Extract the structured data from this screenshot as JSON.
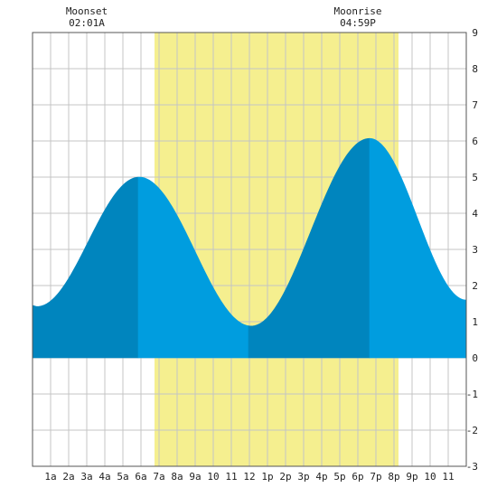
{
  "chart_data": {
    "type": "area",
    "title": "",
    "xlabel": "",
    "ylabel": "",
    "xlim": [
      0,
      24
    ],
    "ylim": [
      -3,
      9
    ],
    "y_ticks": [
      9,
      8,
      7,
      6,
      5,
      4,
      3,
      2,
      1,
      0,
      -1,
      -2,
      -3
    ],
    "x_ticks": [
      {
        "x": 1,
        "label": "1a"
      },
      {
        "x": 2,
        "label": "2a"
      },
      {
        "x": 3,
        "label": "3a"
      },
      {
        "x": 4,
        "label": "4a"
      },
      {
        "x": 5,
        "label": "5a"
      },
      {
        "x": 6,
        "label": "6a"
      },
      {
        "x": 7,
        "label": "7a"
      },
      {
        "x": 8,
        "label": "8a"
      },
      {
        "x": 9,
        "label": "9a"
      },
      {
        "x": 10,
        "label": "10"
      },
      {
        "x": 11,
        "label": "11"
      },
      {
        "x": 12,
        "label": "12"
      },
      {
        "x": 13,
        "label": "1p"
      },
      {
        "x": 14,
        "label": "2p"
      },
      {
        "x": 15,
        "label": "3p"
      },
      {
        "x": 16,
        "label": "4p"
      },
      {
        "x": 17,
        "label": "5p"
      },
      {
        "x": 18,
        "label": "6p"
      },
      {
        "x": 19,
        "label": "7p"
      },
      {
        "x": 20,
        "label": "8p"
      },
      {
        "x": 21,
        "label": "9p"
      },
      {
        "x": 22,
        "label": "10"
      },
      {
        "x": 23,
        "label": "11"
      }
    ],
    "grid": true,
    "daylight": {
      "start": 6.75,
      "end": 20.25,
      "color": "#f5ef8f"
    },
    "tide_extremes": [
      {
        "x": 0.0,
        "y": 1.45
      },
      {
        "x": 0.25,
        "y": 1.42
      },
      {
        "x": 5.9,
        "y": 5.0
      },
      {
        "x": 12.1,
        "y": 0.88
      },
      {
        "x": 18.65,
        "y": 6.07
      },
      {
        "x": 24.0,
        "y": 1.6
      }
    ],
    "shade_bands": [
      {
        "from": 0.0,
        "to": 5.85,
        "color": "#0085be"
      },
      {
        "from": 5.85,
        "to": 11.95,
        "color": "#009ddf"
      },
      {
        "from": 11.95,
        "to": 18.65,
        "color": "#0085be"
      },
      {
        "from": 18.65,
        "to": 24.0,
        "color": "#009ddf"
      }
    ],
    "annotations": [
      {
        "x": 3.0,
        "title": "Moonset",
        "time": "02:01A"
      },
      {
        "x": 18.0,
        "title": "Moonrise",
        "time": "04:59P"
      }
    ]
  }
}
